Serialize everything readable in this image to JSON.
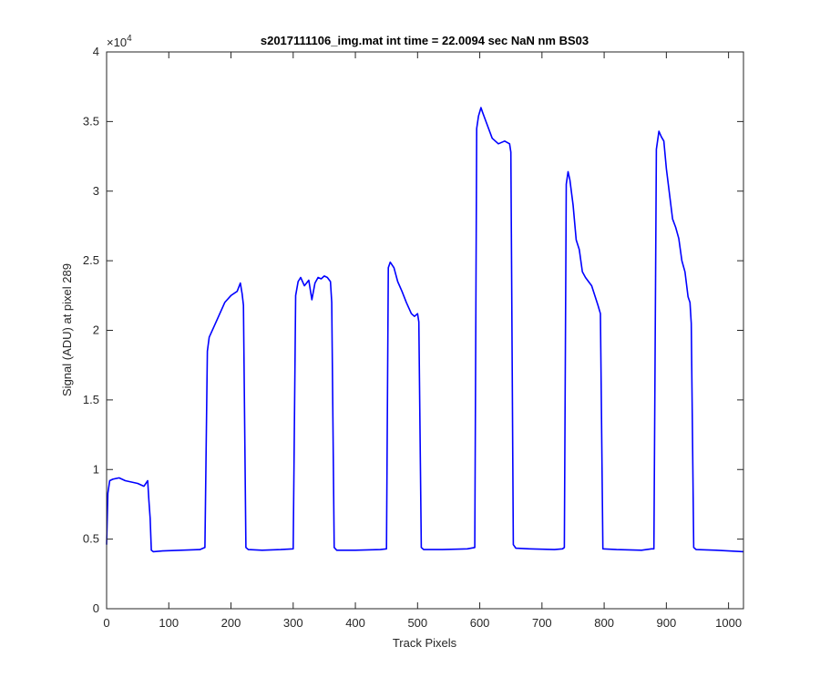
{
  "chart_data": {
    "type": "line",
    "title": "s2017111106_img.mat int time = 22.0094 sec  NaN nm BS03",
    "xlabel": "Track Pixels",
    "ylabel": "Signal (ADU) at pixel 289",
    "xlim": [
      0,
      1024
    ],
    "ylim": [
      0,
      40000
    ],
    "exponent_label": "×10",
    "exponent_power": "4",
    "grid": false,
    "line_color": "#0000ff",
    "xticks": [
      {
        "value": 0,
        "label": "0"
      },
      {
        "value": 100,
        "label": "100"
      },
      {
        "value": 200,
        "label": "200"
      },
      {
        "value": 300,
        "label": "300"
      },
      {
        "value": 400,
        "label": "400"
      },
      {
        "value": 500,
        "label": "500"
      },
      {
        "value": 600,
        "label": "600"
      },
      {
        "value": 700,
        "label": "700"
      },
      {
        "value": 800,
        "label": "800"
      },
      {
        "value": 900,
        "label": "900"
      },
      {
        "value": 1000,
        "label": "1000"
      }
    ],
    "yticks": [
      {
        "value": 0,
        "label": "0"
      },
      {
        "value": 5000,
        "label": "0.5"
      },
      {
        "value": 10000,
        "label": "1"
      },
      {
        "value": 15000,
        "label": "1.5"
      },
      {
        "value": 20000,
        "label": "2"
      },
      {
        "value": 25000,
        "label": "2.5"
      },
      {
        "value": 30000,
        "label": "3"
      },
      {
        "value": 35000,
        "label": "3.5"
      },
      {
        "value": 40000,
        "label": "4"
      }
    ],
    "series": [
      {
        "x": [
          0,
          2,
          5,
          10,
          20,
          30,
          40,
          50,
          60,
          66,
          68,
          70,
          72,
          75,
          90,
          120,
          150,
          158,
          162,
          165,
          172,
          180,
          190,
          200,
          210,
          215,
          218,
          220,
          224,
          228,
          250,
          280,
          300,
          304,
          308,
          312,
          318,
          325,
          330,
          335,
          340,
          345,
          350,
          355,
          360,
          362,
          366,
          370,
          400,
          440,
          450,
          453,
          456,
          462,
          468,
          475,
          482,
          490,
          495,
          500,
          502,
          506,
          510,
          540,
          580,
          592,
          595,
          598,
          602,
          605,
          610,
          620,
          630,
          640,
          648,
          650,
          654,
          658,
          680,
          720,
          733,
          736,
          739,
          742,
          745,
          750,
          755,
          760,
          765,
          770,
          780,
          790,
          794,
          798,
          820,
          860,
          876,
          880,
          884,
          888,
          892,
          896,
          900,
          905,
          910,
          915,
          920,
          925,
          930,
          935,
          938,
          940,
          944,
          948,
          980,
          1024
        ],
        "y": [
          4600,
          8300,
          9200,
          9300,
          9400,
          9200,
          9100,
          9000,
          8800,
          9200,
          7800,
          6500,
          4200,
          4100,
          4150,
          4200,
          4250,
          4400,
          18500,
          19500,
          20200,
          21000,
          22000,
          22500,
          22800,
          23400,
          22600,
          21800,
          4400,
          4250,
          4200,
          4250,
          4300,
          22500,
          23500,
          23800,
          23200,
          23600,
          22200,
          23400,
          23800,
          23700,
          23900,
          23800,
          23500,
          22000,
          4400,
          4200,
          4200,
          4250,
          4300,
          24500,
          24900,
          24500,
          23500,
          22800,
          22000,
          21200,
          21000,
          21200,
          20600,
          4400,
          4250,
          4250,
          4300,
          4400,
          34500,
          35400,
          36000,
          35600,
          35000,
          33800,
          33400,
          33600,
          33400,
          32800,
          4600,
          4350,
          4300,
          4250,
          4300,
          4400,
          30500,
          31400,
          30800,
          29000,
          26500,
          25800,
          24200,
          23800,
          23200,
          21800,
          21200,
          4300,
          4250,
          4200,
          4300,
          4300,
          33000,
          34300,
          33900,
          33600,
          31600,
          29800,
          28000,
          27400,
          26600,
          25000,
          24200,
          22400,
          22000,
          20500,
          4400,
          4250,
          4200,
          4100
        ]
      }
    ]
  }
}
